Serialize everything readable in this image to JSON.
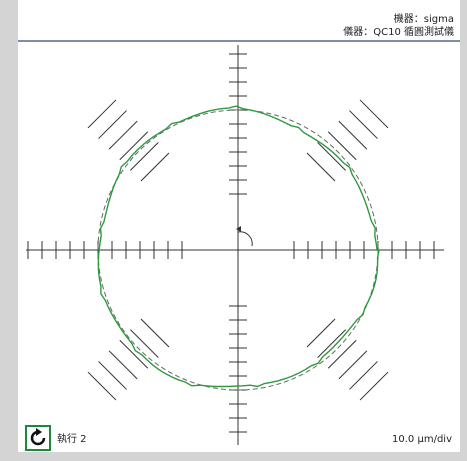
{
  "header": {
    "machine": "機器：sigma",
    "instrument": "儀器：QC10 循圓測試儀"
  },
  "footer": {
    "run": "執行 2",
    "scale": "10.0 μm/div"
  }
}
